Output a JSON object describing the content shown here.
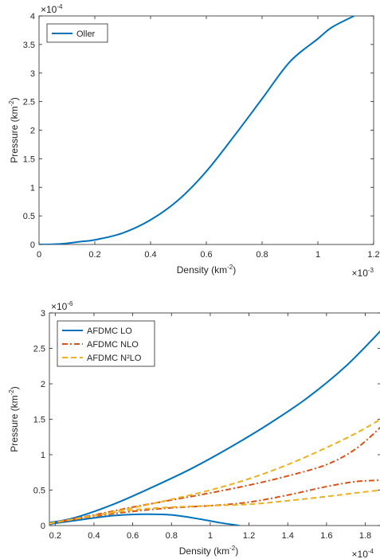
{
  "chart_data": [
    {
      "type": "line",
      "xlabel": "Density (km",
      "xlabel_sup": "-2",
      "xlabel_end": ")",
      "ylabel": "Pressure (km",
      "ylabel_sup": "-2",
      "ylabel_end": ")",
      "x_scale_label": "×10",
      "x_scale_exp": "-3",
      "y_scale_label": "×10",
      "y_scale_exp": "-4",
      "xlim": [
        0,
        1.2
      ],
      "ylim": [
        0,
        4
      ],
      "xticks": [
        0,
        0.2,
        0.4,
        0.6,
        0.8,
        1,
        1.2
      ],
      "xtick_labels": [
        "0",
        "0.2",
        "0.4",
        "0.6",
        "0.8",
        "1",
        "1.2"
      ],
      "yticks": [
        0,
        0.5,
        1,
        1.5,
        2,
        2.5,
        3,
        3.5,
        4
      ],
      "ytick_labels": [
        "0",
        "0.5",
        "1",
        "1.5",
        "2",
        "2.5",
        "3",
        "3.5",
        "4"
      ],
      "legend_position": "top-left",
      "grid": false,
      "series": [
        {
          "name": "Oller",
          "color": "#0072BD",
          "style": "solid",
          "x": [
            0,
            0.05,
            0.1,
            0.15,
            0.2,
            0.3,
            0.4,
            0.5,
            0.6,
            0.7,
            0.8,
            0.9,
            1.0,
            1.05,
            1.13
          ],
          "y": [
            0,
            0.003,
            0.02,
            0.05,
            0.08,
            0.2,
            0.43,
            0.78,
            1.28,
            1.9,
            2.55,
            3.2,
            3.6,
            3.8,
            4.0
          ]
        }
      ]
    },
    {
      "type": "line",
      "xlabel": "Density (km",
      "xlabel_sup": "-2",
      "xlabel_end": ")",
      "ylabel": "Pressure (km",
      "ylabel_sup": "-2",
      "ylabel_end": ")",
      "x_scale_label": "×10",
      "x_scale_exp": "-4",
      "y_scale_label": "×10",
      "y_scale_exp": "-6",
      "xlim": [
        0.17,
        1.88
      ],
      "ylim": [
        0,
        3
      ],
      "xticks": [
        0.2,
        0.4,
        0.6,
        0.8,
        1,
        1.2,
        1.4,
        1.6,
        1.8
      ],
      "xtick_labels": [
        "0.2",
        "0.4",
        "0.6",
        "0.8",
        "1",
        "1.2",
        "1.4",
        "1.6",
        "1.8"
      ],
      "yticks": [
        0,
        0.5,
        1,
        1.5,
        2,
        2.5,
        3
      ],
      "ytick_labels": [
        "0",
        "0.5",
        "1",
        "1.5",
        "2",
        "2.5",
        "3"
      ],
      "legend_position": "top-left",
      "grid": false,
      "series": [
        {
          "name": "AFDMC LO",
          "color": "#0072BD",
          "style": "solid",
          "branches": [
            {
              "x": [
                0.17,
                0.3,
                0.5,
                0.7,
                0.9,
                1.1,
                1.3,
                1.5,
                1.7,
                1.88
              ],
              "y": [
                0.04,
                0.11,
                0.3,
                0.54,
                0.8,
                1.1,
                1.43,
                1.8,
                2.25,
                2.75
              ]
            },
            {
              "x": [
                0.17,
                0.3,
                0.5,
                0.65,
                0.8,
                0.95,
                1.05,
                1.15
              ],
              "y": [
                0.02,
                0.07,
                0.14,
                0.16,
                0.15,
                0.09,
                0.04,
                0.0
              ]
            }
          ]
        },
        {
          "name": "AFDMC NLO",
          "color": "#D95319",
          "style": "dashdot",
          "branches": [
            {
              "x": [
                0.17,
                0.4,
                0.6,
                0.8,
                1.0,
                1.2,
                1.4,
                1.6,
                1.75,
                1.88
              ],
              "y": [
                0.03,
                0.15,
                0.26,
                0.36,
                0.46,
                0.57,
                0.7,
                0.86,
                1.08,
                1.39
              ]
            },
            {
              "x": [
                0.17,
                0.4,
                0.6,
                0.8,
                1.0,
                1.2,
                1.4,
                1.6,
                1.75,
                1.88
              ],
              "y": [
                0.03,
                0.13,
                0.2,
                0.25,
                0.28,
                0.33,
                0.43,
                0.55,
                0.62,
                0.64
              ]
            }
          ]
        },
        {
          "name": "AFDMC N²LO",
          "color": "#EDB120",
          "style": "dashed",
          "branches": [
            {
              "x": [
                0.17,
                0.4,
                0.6,
                0.8,
                1.0,
                1.2,
                1.4,
                1.6,
                1.75,
                1.88
              ],
              "y": [
                0.03,
                0.14,
                0.25,
                0.37,
                0.5,
                0.66,
                0.86,
                1.1,
                1.3,
                1.5
              ]
            },
            {
              "x": [
                0.17,
                0.4,
                0.6,
                0.8,
                1.0,
                1.2,
                1.4,
                1.6,
                1.75,
                1.88
              ],
              "y": [
                0.03,
                0.14,
                0.22,
                0.26,
                0.28,
                0.3,
                0.35,
                0.41,
                0.46,
                0.5
              ]
            }
          ]
        }
      ]
    }
  ]
}
